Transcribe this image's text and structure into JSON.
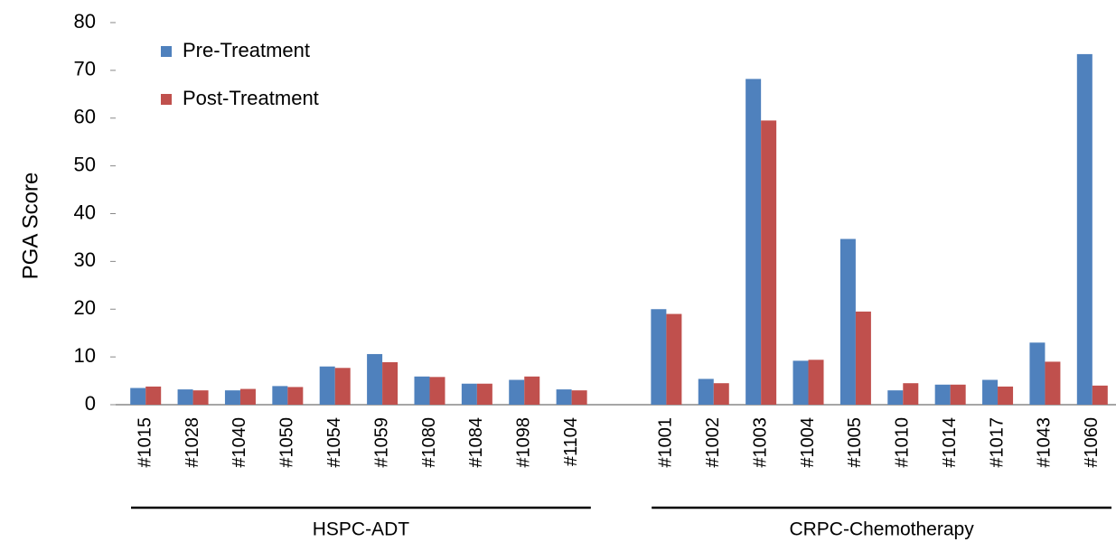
{
  "chart_data": {
    "type": "bar",
    "ylabel": "PGA Score",
    "categories": [
      "#1015",
      "#1028",
      "#1040",
      "#1050",
      "#1054",
      "#1059",
      "#1080",
      "#1084",
      "#1098",
      "#1104",
      null,
      "#1001",
      "#1002",
      "#1003",
      "#1004",
      "#1005",
      "#1010",
      "#1014",
      "#1017",
      "#1043",
      "#1060"
    ],
    "groups": [
      "HSPC-ADT",
      "CRPC-Chemotherapy"
    ],
    "series": [
      {
        "name": "Pre-Treatment",
        "color": "#4f81bd",
        "values": [
          3.5,
          3.2,
          3.0,
          3.9,
          8.0,
          10.6,
          5.9,
          4.4,
          5.2,
          3.2,
          null,
          20.0,
          5.4,
          68.2,
          9.2,
          34.7,
          3.0,
          4.2,
          5.2,
          13.0,
          73.4
        ]
      },
      {
        "name": "Post-Treatment",
        "color": "#c0504d",
        "values": [
          3.8,
          3.0,
          3.3,
          3.7,
          7.7,
          8.9,
          5.8,
          4.4,
          5.9,
          3.0,
          null,
          19.0,
          4.5,
          59.5,
          9.4,
          19.5,
          4.5,
          4.2,
          3.8,
          9.0,
          4.0
        ]
      }
    ],
    "ylim": [
      0,
      80
    ],
    "yticks": [
      0,
      10,
      20,
      30,
      40,
      50,
      60,
      70,
      80
    ],
    "grid": false,
    "legend": "upper left"
  }
}
